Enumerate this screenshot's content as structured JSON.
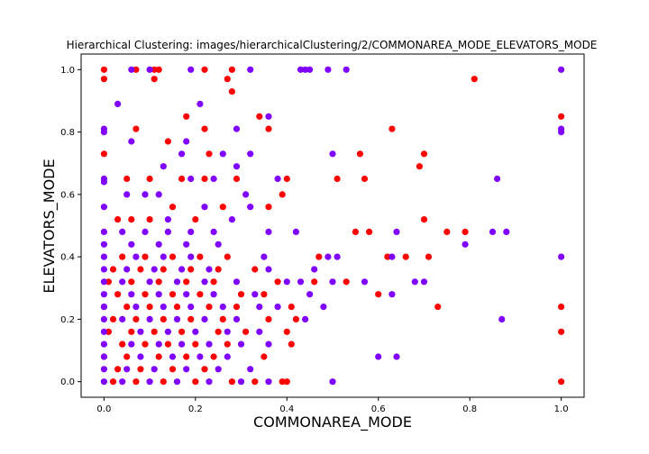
{
  "colors": {
    "cluster_a": "#ff0000",
    "cluster_b": "#8000ff",
    "axis": "#000000",
    "background": "#ffffff"
  },
  "chart_data": {
    "type": "scatter",
    "title": "Hierarchical Clustering: images/hierarchicalClustering/2/COMMONAREA_MODE_ELEVATORS_MODE",
    "xlabel": "COMMONAREA_MODE",
    "ylabel": "ELEVATORS_MODE",
    "xlim": [
      -0.05,
      1.05
    ],
    "ylim": [
      -0.05,
      1.05
    ],
    "xticks": [
      "0.0",
      "0.2",
      "0.4",
      "0.6",
      "0.8",
      "1.0"
    ],
    "yticks": [
      "0.0",
      "0.2",
      "0.4",
      "0.6",
      "0.8",
      "1.0"
    ],
    "grid": false,
    "legend": "none",
    "series": [
      {
        "color": "#ff0000",
        "points": [
          [
            0.0,
            1.0
          ],
          [
            0.0,
            0.97
          ],
          [
            0.07,
            1.0
          ],
          [
            0.11,
            1.0
          ],
          [
            0.12,
            1.0
          ],
          [
            0.11,
            0.97
          ],
          [
            0.22,
            1.0
          ],
          [
            0.28,
            1.0
          ],
          [
            0.28,
            0.93
          ],
          [
            0.27,
            0.97
          ],
          [
            0.81,
            0.97
          ],
          [
            0.18,
            0.85
          ],
          [
            0.34,
            0.85
          ],
          [
            0.36,
            0.81
          ],
          [
            0.07,
            0.81
          ],
          [
            0.22,
            0.81
          ],
          [
            0.63,
            0.81
          ],
          [
            1.0,
            0.85
          ],
          [
            0.0,
            0.73
          ],
          [
            0.14,
            0.77
          ],
          [
            0.23,
            0.73
          ],
          [
            0.56,
            0.73
          ],
          [
            0.7,
            0.73
          ],
          [
            0.69,
            0.69
          ],
          [
            0.05,
            0.65
          ],
          [
            0.1,
            0.65
          ],
          [
            0.17,
            0.65
          ],
          [
            0.22,
            0.65
          ],
          [
            0.29,
            0.65
          ],
          [
            0.4,
            0.65
          ],
          [
            0.51,
            0.65
          ],
          [
            0.57,
            0.65
          ],
          [
            0.03,
            0.52
          ],
          [
            0.06,
            0.52
          ],
          [
            0.1,
            0.52
          ],
          [
            0.15,
            0.56
          ],
          [
            0.2,
            0.52
          ],
          [
            0.26,
            0.56
          ],
          [
            0.36,
            0.56
          ],
          [
            0.39,
            0.6
          ],
          [
            0.7,
            0.52
          ],
          [
            0.55,
            0.48
          ],
          [
            0.58,
            0.48
          ],
          [
            0.75,
            0.48
          ],
          [
            0.79,
            0.48
          ],
          [
            0.62,
            0.4
          ],
          [
            0.66,
            0.4
          ],
          [
            0.71,
            0.4
          ],
          [
            0.47,
            0.4
          ],
          [
            0.04,
            0.4
          ],
          [
            0.09,
            0.4
          ],
          [
            0.15,
            0.4
          ],
          [
            0.21,
            0.4
          ],
          [
            0.27,
            0.4
          ],
          [
            0.02,
            0.36
          ],
          [
            0.08,
            0.36
          ],
          [
            0.13,
            0.36
          ],
          [
            0.19,
            0.36
          ],
          [
            0.25,
            0.36
          ],
          [
            0.33,
            0.36
          ],
          [
            0.38,
            0.32
          ],
          [
            0.46,
            0.32
          ],
          [
            0.53,
            0.32
          ],
          [
            0.01,
            0.32
          ],
          [
            0.06,
            0.32
          ],
          [
            0.12,
            0.32
          ],
          [
            0.18,
            0.32
          ],
          [
            0.24,
            0.32
          ],
          [
            0.3,
            0.28
          ],
          [
            0.35,
            0.28
          ],
          [
            0.41,
            0.24
          ],
          [
            0.6,
            0.28
          ],
          [
            0.73,
            0.24
          ],
          [
            0.03,
            0.28
          ],
          [
            0.09,
            0.28
          ],
          [
            0.15,
            0.28
          ],
          [
            0.21,
            0.28
          ],
          [
            0.0,
            0.24
          ],
          [
            0.05,
            0.24
          ],
          [
            0.1,
            0.24
          ],
          [
            0.16,
            0.24
          ],
          [
            0.23,
            0.24
          ],
          [
            0.29,
            0.24
          ],
          [
            0.36,
            0.2
          ],
          [
            0.42,
            0.2
          ],
          [
            0.02,
            0.2
          ],
          [
            0.07,
            0.2
          ],
          [
            0.13,
            0.2
          ],
          [
            0.19,
            0.2
          ],
          [
            0.26,
            0.2
          ],
          [
            0.01,
            0.16
          ],
          [
            0.06,
            0.16
          ],
          [
            0.11,
            0.16
          ],
          [
            0.17,
            0.16
          ],
          [
            0.25,
            0.16
          ],
          [
            0.31,
            0.16
          ],
          [
            0.4,
            0.16
          ],
          [
            0.04,
            0.12
          ],
          [
            0.09,
            0.12
          ],
          [
            0.14,
            0.12
          ],
          [
            0.2,
            0.12
          ],
          [
            0.27,
            0.12
          ],
          [
            0.41,
            0.12
          ],
          [
            0.0,
            0.08
          ],
          [
            0.05,
            0.08
          ],
          [
            0.12,
            0.08
          ],
          [
            0.18,
            0.08
          ],
          [
            0.24,
            0.08
          ],
          [
            0.35,
            0.08
          ],
          [
            0.03,
            0.04
          ],
          [
            0.08,
            0.04
          ],
          [
            0.15,
            0.04
          ],
          [
            0.22,
            0.04
          ],
          [
            0.02,
            0.0
          ],
          [
            0.07,
            0.0
          ],
          [
            0.13,
            0.0
          ],
          [
            0.2,
            0.0
          ],
          [
            0.28,
            0.0
          ],
          [
            0.33,
            0.0
          ],
          [
            0.39,
            0.0
          ],
          [
            0.4,
            0.0
          ],
          [
            1.0,
            0.24
          ],
          [
            1.0,
            0.16
          ],
          [
            1.0,
            0.0
          ]
        ]
      },
      {
        "color": "#8000ff",
        "points": [
          [
            0.06,
            1.0
          ],
          [
            0.1,
            1.0
          ],
          [
            0.19,
            1.0
          ],
          [
            0.32,
            1.0
          ],
          [
            0.43,
            1.0
          ],
          [
            0.44,
            1.0
          ],
          [
            0.45,
            1.0
          ],
          [
            0.49,
            1.0
          ],
          [
            0.53,
            1.0
          ],
          [
            1.0,
            1.0
          ],
          [
            0.03,
            0.89
          ],
          [
            0.21,
            0.89
          ],
          [
            0.0,
            0.81
          ],
          [
            0.0,
            0.8
          ],
          [
            0.29,
            0.81
          ],
          [
            0.36,
            0.85
          ],
          [
            0.06,
            0.77
          ],
          [
            0.18,
            0.77
          ],
          [
            0.17,
            0.73
          ],
          [
            0.32,
            0.73
          ],
          [
            0.5,
            0.73
          ],
          [
            1.0,
            0.81
          ],
          [
            1.0,
            0.8
          ],
          [
            0.0,
            0.65
          ],
          [
            0.0,
            0.64
          ],
          [
            0.13,
            0.69
          ],
          [
            0.26,
            0.73
          ],
          [
            0.29,
            0.69
          ],
          [
            0.09,
            0.6
          ],
          [
            0.12,
            0.6
          ],
          [
            0.19,
            0.65
          ],
          [
            0.24,
            0.65
          ],
          [
            0.31,
            0.6
          ],
          [
            0.38,
            0.65
          ],
          [
            0.86,
            0.65
          ],
          [
            0.0,
            0.56
          ],
          [
            0.05,
            0.6
          ],
          [
            0.14,
            0.52
          ],
          [
            0.22,
            0.56
          ],
          [
            0.28,
            0.52
          ],
          [
            0.32,
            0.56
          ],
          [
            0.0,
            0.48
          ],
          [
            0.04,
            0.48
          ],
          [
            0.09,
            0.48
          ],
          [
            0.14,
            0.48
          ],
          [
            0.19,
            0.48
          ],
          [
            0.24,
            0.48
          ],
          [
            0.36,
            0.48
          ],
          [
            0.42,
            0.48
          ],
          [
            0.64,
            0.48
          ],
          [
            0.79,
            0.44
          ],
          [
            0.85,
            0.48
          ],
          [
            0.88,
            0.48
          ],
          [
            0.63,
            0.4
          ],
          [
            0.0,
            0.44
          ],
          [
            0.06,
            0.44
          ],
          [
            0.12,
            0.44
          ],
          [
            0.18,
            0.44
          ],
          [
            0.25,
            0.44
          ],
          [
            0.35,
            0.4
          ],
          [
            0.46,
            0.36
          ],
          [
            0.49,
            0.4
          ],
          [
            0.51,
            0.4
          ],
          [
            0.0,
            0.4
          ],
          [
            0.07,
            0.4
          ],
          [
            0.13,
            0.4
          ],
          [
            0.19,
            0.4
          ],
          [
            0.23,
            0.36
          ],
          [
            0.36,
            0.36
          ],
          [
            0.0,
            0.36
          ],
          [
            0.05,
            0.36
          ],
          [
            0.11,
            0.36
          ],
          [
            0.17,
            0.36
          ],
          [
            0.4,
            0.32
          ],
          [
            0.43,
            0.32
          ],
          [
            0.5,
            0.32
          ],
          [
            0.57,
            0.32
          ],
          [
            0.68,
            0.32
          ],
          [
            0.7,
            0.32
          ],
          [
            0.63,
            0.28
          ],
          [
            0.0,
            0.32
          ],
          [
            0.04,
            0.32
          ],
          [
            0.1,
            0.32
          ],
          [
            0.16,
            0.32
          ],
          [
            0.22,
            0.32
          ],
          [
            0.29,
            0.32
          ],
          [
            0.0,
            0.28
          ],
          [
            0.06,
            0.28
          ],
          [
            0.12,
            0.28
          ],
          [
            0.18,
            0.28
          ],
          [
            0.24,
            0.28
          ],
          [
            0.33,
            0.28
          ],
          [
            0.45,
            0.28
          ],
          [
            0.48,
            0.24
          ],
          [
            0.0,
            0.24
          ],
          [
            0.07,
            0.24
          ],
          [
            0.13,
            0.24
          ],
          [
            0.19,
            0.24
          ],
          [
            0.26,
            0.24
          ],
          [
            0.34,
            0.24
          ],
          [
            0.38,
            0.24
          ],
          [
            0.44,
            0.2
          ],
          [
            0.87,
            0.2
          ],
          [
            0.0,
            0.2
          ],
          [
            0.04,
            0.2
          ],
          [
            0.1,
            0.2
          ],
          [
            0.16,
            0.2
          ],
          [
            0.22,
            0.2
          ],
          [
            0.29,
            0.2
          ],
          [
            0.34,
            0.16
          ],
          [
            0.0,
            0.16
          ],
          [
            0.08,
            0.16
          ],
          [
            0.14,
            0.16
          ],
          [
            0.2,
            0.16
          ],
          [
            0.27,
            0.16
          ],
          [
            0.36,
            0.12
          ],
          [
            0.0,
            0.12
          ],
          [
            0.06,
            0.12
          ],
          [
            0.12,
            0.12
          ],
          [
            0.17,
            0.12
          ],
          [
            0.23,
            0.12
          ],
          [
            0.3,
            0.12
          ],
          [
            0.0,
            0.08
          ],
          [
            0.08,
            0.08
          ],
          [
            0.15,
            0.08
          ],
          [
            0.21,
            0.08
          ],
          [
            0.27,
            0.08
          ],
          [
            0.6,
            0.08
          ],
          [
            0.64,
            0.08
          ],
          [
            0.0,
            0.04
          ],
          [
            0.05,
            0.04
          ],
          [
            0.11,
            0.04
          ],
          [
            0.18,
            0.04
          ],
          [
            0.25,
            0.04
          ],
          [
            0.32,
            0.04
          ],
          [
            0.0,
            0.0
          ],
          [
            0.04,
            0.0
          ],
          [
            0.1,
            0.0
          ],
          [
            0.16,
            0.0
          ],
          [
            0.23,
            0.0
          ],
          [
            0.3,
            0.0
          ],
          [
            0.36,
            0.0
          ],
          [
            0.5,
            0.0
          ],
          [
            1.0,
            0.4
          ]
        ]
      }
    ]
  }
}
